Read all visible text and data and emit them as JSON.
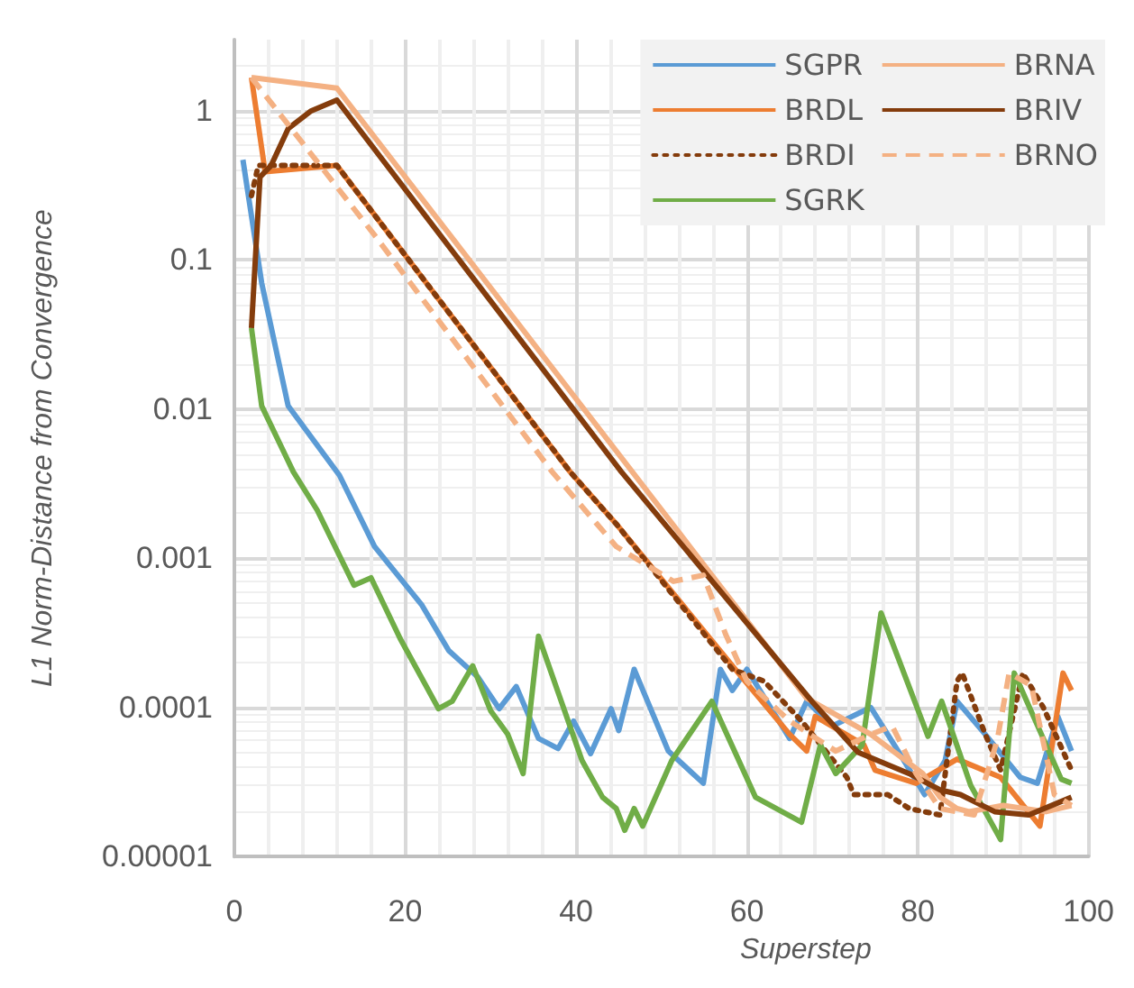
{
  "chart_data": {
    "type": "line",
    "xlabel": "Superstep",
    "ylabel": "L1 Norm-Distance from Convergence",
    "log": "y",
    "grid": true,
    "legend": "top right",
    "marker": "none",
    "xlim": [
      0,
      100
    ],
    "xticks": [
      0,
      20,
      40,
      60,
      80,
      100
    ],
    "ylim": [
      1e-05,
      3
    ],
    "yticks": [
      {
        "value": 1e-05,
        "label": "0.00001"
      },
      {
        "value": 0.0001,
        "label": "0.0001"
      },
      {
        "value": 0.001,
        "label": "0.001"
      },
      {
        "value": 0.01,
        "label": "0.01"
      },
      {
        "value": 0.1,
        "label": "0.1"
      },
      {
        "value": 1,
        "label": "1"
      }
    ],
    "series": [
      {
        "name": "SGPR",
        "color": "#5b9bd5",
        "line_style": "solid",
        "x": [
          1,
          3.2,
          6.3,
          12.3,
          16.4,
          21.9,
          25.1,
          28.5,
          31,
          33,
          35.6,
          37.9,
          39.7,
          41.7,
          44.1,
          45,
          46.8,
          50.8,
          54.9,
          56.9,
          58.3,
          60,
          65,
          67,
          70,
          74.5,
          77.7,
          80.8,
          83.2,
          84.6,
          87.9,
          92,
          94,
          96.4,
          98
        ],
        "values": [
          0.47,
          0.07,
          0.0105,
          0.0036,
          0.0012,
          0.00049,
          0.00024,
          0.00016,
          9.8e-05,
          0.000138,
          6.2e-05,
          5.3e-05,
          8.1e-05,
          4.9e-05,
          9.8e-05,
          7e-05,
          0.00018,
          5.1e-05,
          3.1e-05,
          0.00018,
          0.00013,
          0.00018,
          6.2e-05,
          0.00011,
          7.5e-05,
          0.0001,
          5.1e-05,
          2.6e-05,
          4.4e-05,
          0.00011,
          6.6e-05,
          3.4e-05,
          3.1e-05,
          8.7e-05,
          5.1e-05
        ]
      },
      {
        "name": "BRDL",
        "color": "#ed7d31",
        "line_style": "solid",
        "x": [
          2,
          3.6,
          12,
          39.3,
          44.7,
          59,
          65,
          67,
          68,
          73.7,
          75,
          79.8,
          84.6,
          89.7,
          94.3,
          97,
          98
        ],
        "values": [
          1.67,
          0.39,
          0.43,
          0.0038,
          0.0017,
          0.00017,
          6.6e-05,
          5.1e-05,
          8.7e-05,
          5.6e-05,
          3.8e-05,
          3.1e-05,
          4.5e-05,
          3.4e-05,
          1.6e-05,
          0.00017,
          0.00013
        ]
      },
      {
        "name": "BRDI",
        "color": "#843c0c",
        "line_style": "dotted",
        "x": [
          2,
          2.8,
          12,
          39.3,
          44.7,
          58.3,
          62,
          66.4,
          71.7,
          72.5,
          76.5,
          79,
          82.6,
          84.6,
          85.2,
          87.9,
          89.7,
          92.3,
          94.7,
          98
        ],
        "values": [
          0.27,
          0.43,
          0.43,
          0.0038,
          0.0017,
          0.00018,
          0.00015,
          8.1e-05,
          3.4e-05,
          2.6e-05,
          2.6e-05,
          2.1e-05,
          1.9e-05,
          0.00015,
          0.00017,
          6.6e-05,
          3.8e-05,
          0.00017,
          0.0001,
          3.8e-05
        ]
      },
      {
        "name": "SGRK",
        "color": "#70ad47",
        "line_style": "solid",
        "x": [
          2,
          3.2,
          6.9,
          9.7,
          14,
          16,
          19.4,
          23.9,
          25.5,
          27.9,
          30,
          32,
          33.8,
          35.6,
          40.7,
          43.1,
          44.7,
          45.7,
          46.8,
          47.8,
          51.2,
          55.9,
          61,
          66.4,
          68.6,
          70.4,
          73.5,
          75.7,
          81.2,
          82.8,
          86.2,
          89.7,
          91.3,
          96.8,
          98
        ],
        "values": [
          0.035,
          0.0105,
          0.0038,
          0.0021,
          0.00066,
          0.00074,
          0.00029,
          9.8e-05,
          0.00011,
          0.00019,
          9.5e-05,
          6.6e-05,
          3.6e-05,
          0.0003,
          4.4e-05,
          2.5e-05,
          2.1e-05,
          1.5e-05,
          2.1e-05,
          1.6e-05,
          4.4e-05,
          0.00011,
          2.5e-05,
          1.7e-05,
          5.6e-05,
          3.6e-05,
          5.6e-05,
          0.00043,
          6.4e-05,
          0.00011,
          3e-05,
          1.3e-05,
          0.00017,
          3.3e-05,
          3.1e-05
        ]
      },
      {
        "name": "BRNA",
        "color": "#f4b183",
        "line_style": "solid",
        "x": [
          2,
          12,
          67,
          74.5,
          80.6,
          82.6,
          84.6,
          86,
          90,
          95,
          98
        ],
        "values": [
          1.67,
          1.42,
          0.000115,
          6.6e-05,
          3.6e-05,
          2.5e-05,
          2.1e-05,
          2e-05,
          2.2e-05,
          2e-05,
          2.2e-05
        ]
      },
      {
        "name": "BRIV",
        "color": "#843c0c",
        "line_style": "solid",
        "x": [
          2,
          3,
          4.3,
          6.3,
          9,
          12,
          45.3,
          67.6,
          73,
          79,
          82.6,
          85,
          89,
          93,
          98
        ],
        "values": [
          0.035,
          0.36,
          0.43,
          0.76,
          1.0,
          1.18,
          0.0038,
          0.00011,
          5e-05,
          3.6e-05,
          2.8e-05,
          2.6e-05,
          2e-05,
          1.9e-05,
          2.5e-05
        ]
      },
      {
        "name": "BRNO",
        "color": "#f4b183",
        "line_style": "dashed",
        "x": [
          2,
          16.4,
          37.2,
          44.7,
          51.4,
          54.9,
          57.5,
          60,
          65,
          70.4,
          74.5,
          77,
          79.8,
          82.6,
          86.6,
          89.3,
          90.7,
          93.3,
          96,
          98
        ],
        "values": [
          1.67,
          0.147,
          0.0038,
          0.0012,
          0.0007,
          0.00077,
          0.00031,
          0.00015,
          8.1e-05,
          5.1e-05,
          6.6e-05,
          7.5e-05,
          3.6e-05,
          2.1e-05,
          1.9e-05,
          6e-05,
          0.00017,
          0.00014,
          2.6e-05,
          2.2e-05
        ]
      }
    ]
  }
}
